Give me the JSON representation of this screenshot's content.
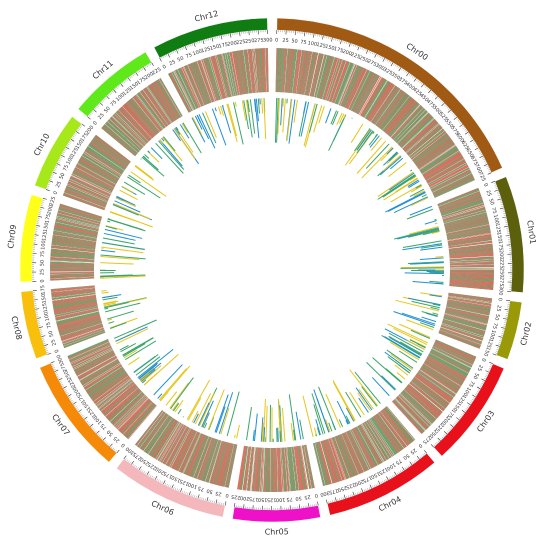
{
  "chart_data": {
    "type": "circos",
    "track_colors": {
      "heat": [
        "#d93b2a",
        "#2e8b3e",
        "#8a6b4a",
        "#ffffff"
      ],
      "bars": [
        "#1f8fd6",
        "#e6c619",
        "#3aa56a"
      ]
    },
    "chromosomes": [
      {
        "name": "Chr00",
        "color": "#a05a14",
        "size": 725,
        "ticks": [
          0,
          25,
          50,
          75,
          100,
          125,
          150,
          175,
          200,
          225,
          250,
          275,
          300,
          325,
          350,
          375,
          400,
          425,
          450,
          475,
          500,
          525,
          550,
          575,
          600,
          625,
          650,
          675,
          700,
          725
        ]
      },
      {
        "name": "Chr01",
        "color": "#5c5f0c",
        "size": 300,
        "ticks": [
          0,
          25,
          50,
          75,
          100,
          125,
          150,
          175,
          200,
          225,
          250,
          275,
          300
        ]
      },
      {
        "name": "Chr02",
        "color": "#9a9a08",
        "size": 150,
        "ticks": [
          0,
          25,
          50,
          75,
          100,
          125,
          150
        ]
      },
      {
        "name": "Chr03",
        "color": "#e8101a",
        "size": 275,
        "ticks": [
          0,
          25,
          50,
          75,
          100,
          125,
          150,
          175,
          200,
          225,
          250,
          275
        ]
      },
      {
        "name": "Chr04",
        "color": "#e8101a",
        "size": 300,
        "ticks": [
          0,
          25,
          50,
          75,
          100,
          125,
          150,
          175,
          200,
          225,
          250,
          275,
          300
        ]
      },
      {
        "name": "Chr05",
        "color": "#ee11c8",
        "size": 225,
        "ticks": [
          0,
          25,
          50,
          75,
          100,
          125,
          150,
          175,
          200,
          225
        ]
      },
      {
        "name": "Chr06",
        "color": "#f4b8bc",
        "size": 300,
        "ticks": [
          0,
          25,
          50,
          75,
          100,
          125,
          150,
          175,
          200,
          225,
          250,
          275,
          300
        ]
      },
      {
        "name": "Chr07",
        "color": "#f58a08",
        "size": 300,
        "ticks": [
          0,
          25,
          50,
          75,
          100,
          125,
          150,
          175,
          200,
          225,
          250,
          275,
          300
        ]
      },
      {
        "name": "Chr08",
        "color": "#f8c00c",
        "size": 175,
        "ticks": [
          0,
          25,
          50,
          75,
          100,
          125,
          150,
          175
        ]
      },
      {
        "name": "Chr09",
        "color": "#ffff1a",
        "size": 225,
        "ticks": [
          0,
          25,
          50,
          75,
          100,
          125,
          150,
          175,
          200,
          225
        ]
      },
      {
        "name": "Chr10",
        "color": "#a6e81a",
        "size": 200,
        "ticks": [
          0,
          25,
          50,
          75,
          100,
          125,
          150,
          175,
          200
        ]
      },
      {
        "name": "Chr11",
        "color": "#5fe81a",
        "size": 225,
        "ticks": [
          0,
          25,
          50,
          75,
          100,
          125,
          150,
          175,
          200,
          225
        ]
      },
      {
        "name": "Chr12",
        "color": "#0f7d12",
        "size": 300,
        "ticks": [
          0,
          25,
          50,
          75,
          100,
          125,
          150,
          175,
          200,
          225,
          250,
          275,
          300
        ]
      }
    ]
  }
}
